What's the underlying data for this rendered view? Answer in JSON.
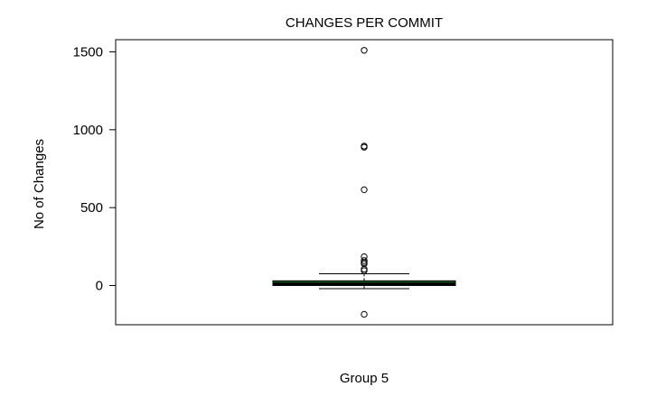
{
  "chart_data": {
    "type": "boxplot",
    "title": "CHANGES PER COMMIT",
    "xlabel": "Group 5",
    "ylabel": "No of Changes",
    "ylim": [
      -250,
      1550
    ],
    "y_ticks": [
      0,
      500,
      1000,
      1500
    ],
    "y_tick_labels": [
      "0",
      "500",
      "1000",
      "1500"
    ],
    "grid": false,
    "box": {
      "q1": 0,
      "median": 10,
      "q3": 30,
      "whisker_low": -20,
      "whisker_high": 75,
      "fill_color": "#1a5c1a",
      "median_color": "#000000"
    },
    "outliers": [
      1510,
      895,
      888,
      615,
      185,
      160,
      148,
      140,
      105,
      95,
      -185
    ]
  }
}
